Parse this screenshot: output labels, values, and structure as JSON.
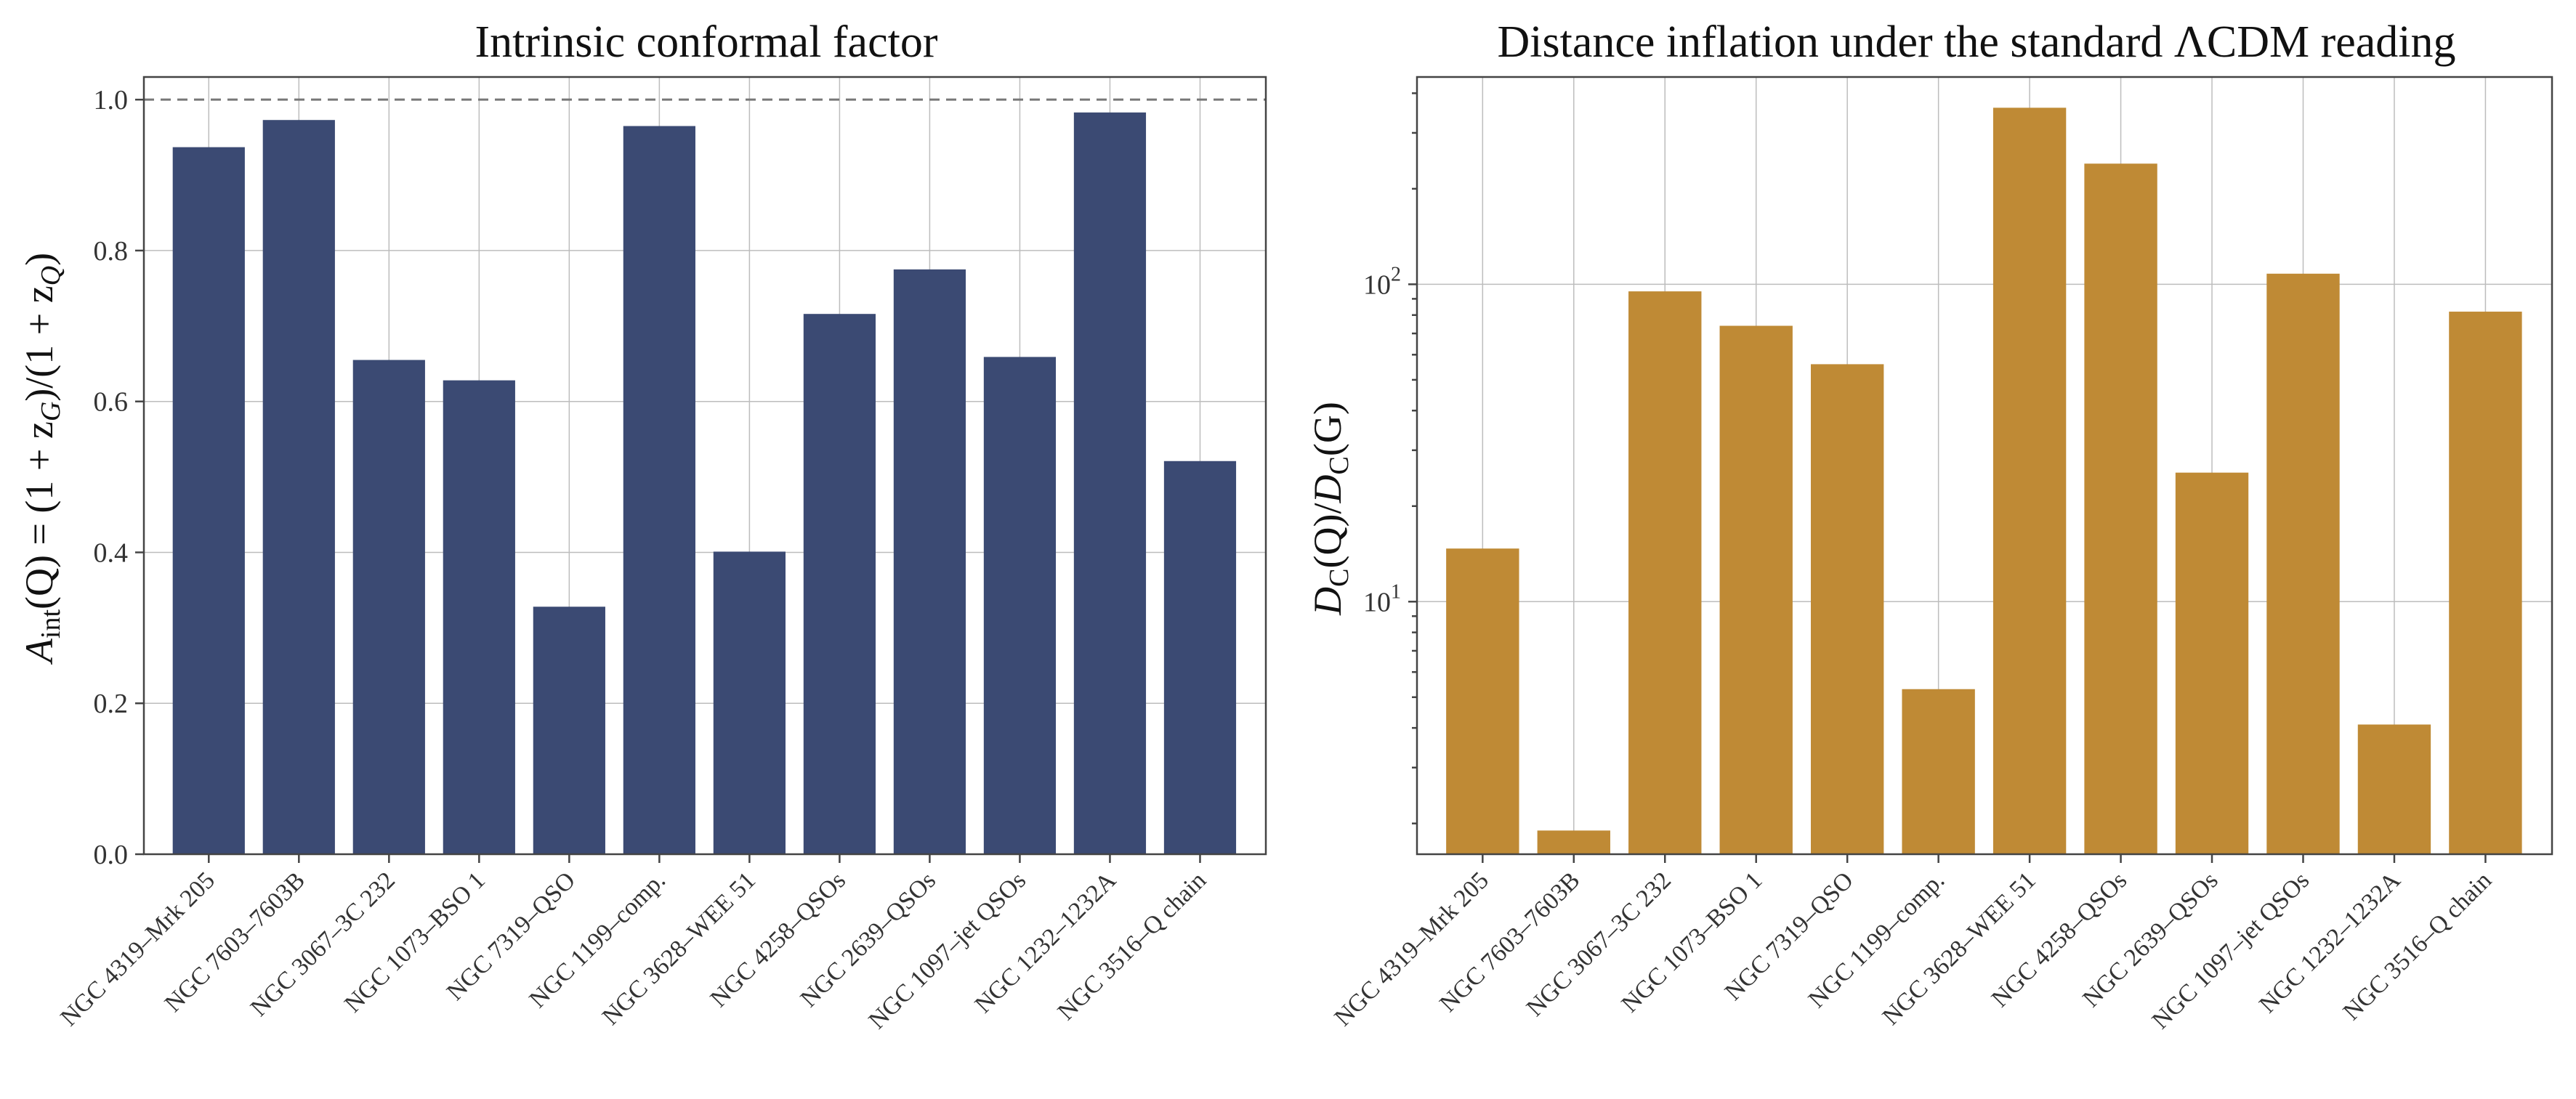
{
  "chart_data": [
    {
      "type": "bar",
      "title": "Intrinsic conformal factor",
      "xlabel": "",
      "ylabel": "A_int(Q) = (1 + z_G)/(1 + z_Q)",
      "ylabel_parts": {
        "a1": "A",
        "s1": "int",
        "a2": "(Q) = (1 + z",
        "s2": "G",
        "a3": ")/(1 + z",
        "s3": "Q",
        "a4": ")"
      },
      "y_scale": "linear",
      "ylim": [
        0,
        1.03
      ],
      "ytick_values": [
        0.0,
        0.2,
        0.4,
        0.6,
        0.8,
        1.0
      ],
      "yticks": [
        "0.0",
        "0.2",
        "0.4",
        "0.6",
        "0.8",
        "1.0"
      ],
      "reference_line": 1.0,
      "grid": true,
      "color": "#3b4a73",
      "categories": [
        "NGC 4319–Mrk 205",
        "NGC 7603–7603B",
        "NGC 3067–3C 232",
        "NGC 1073–BSO 1",
        "NGC 7319–QSO",
        "NGC 1199–comp.",
        "NGC 3628–WEE 51",
        "NGC 4258–QSOs",
        "NGC 2639–QSOs",
        "NGC 1097–jet QSOs",
        "NGC 1232–1232A",
        "NGC 3516–Q chain"
      ],
      "values": [
        0.937,
        0.973,
        0.655,
        0.628,
        0.328,
        0.965,
        0.401,
        0.716,
        0.775,
        0.659,
        0.983,
        0.521
      ]
    },
    {
      "type": "bar",
      "title": "Distance inflation under the standard ΛCDM reading",
      "xlabel": "",
      "ylabel": "D_C(Q)/D_C(G)",
      "ylabel_parts": {
        "a1": "D",
        "s1": "C",
        "a2": "(Q)/",
        "a3": "D",
        "s2": "C",
        "a4": "(G)"
      },
      "y_scale": "log",
      "ylim": [
        1.6,
        450
      ],
      "ytick_values": [
        10,
        100
      ],
      "yticks": [
        "10",
        "10"
      ],
      "ytick_exponents": [
        "1",
        "2"
      ],
      "grid": true,
      "color": "#bf8a35",
      "categories": [
        "NGC 4319–Mrk 205",
        "NGC 7603–7603B",
        "NGC 3067–3C 232",
        "NGC 1073–BSO 1",
        "NGC 7319–QSO",
        "NGC 1199–comp.",
        "NGC 3628–WEE 51",
        "NGC 4258–QSOs",
        "NGC 2639–QSOs",
        "NGC 1097–jet QSOs",
        "NGC 1232–1232A",
        "NGC 3516–Q chain"
      ],
      "values": [
        14.7,
        1.9,
        95,
        74,
        56,
        5.3,
        360,
        240,
        25.5,
        108,
        4.1,
        82
      ]
    }
  ]
}
